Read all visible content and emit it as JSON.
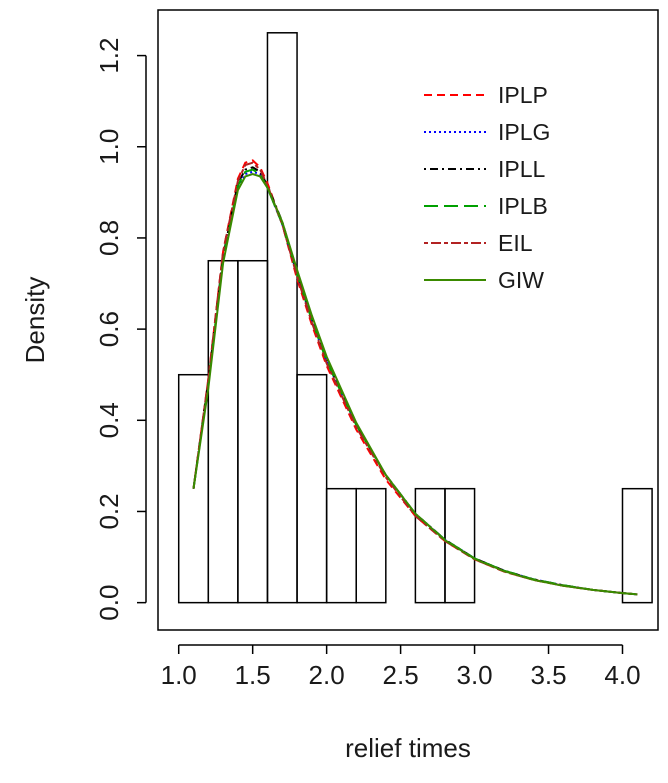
{
  "chart_data": {
    "type": "histogram_with_density_curves",
    "xlabel": "relief times",
    "ylabel": "Density",
    "xlim": [
      0.86,
      4.24
    ],
    "ylim": [
      -0.06,
      1.3
    ],
    "grid": false,
    "legend_position": "top-right",
    "x_ticks": [
      "1.0",
      "1.5",
      "2.0",
      "2.5",
      "3.0",
      "3.5",
      "4.0"
    ],
    "y_ticks": [
      "0.0",
      "0.2",
      "0.4",
      "0.6",
      "0.8",
      "1.0",
      "1.2"
    ],
    "histogram": {
      "bin_edges": [
        1.0,
        1.2,
        1.4,
        1.6,
        1.8,
        2.0,
        2.2,
        2.4,
        2.6,
        2.8,
        3.0,
        3.2,
        3.4,
        3.6,
        3.8,
        4.0,
        4.2
      ],
      "densities": [
        0.5,
        0.75,
        0.75,
        1.25,
        0.5,
        0.25,
        0.25,
        0.0,
        0.25,
        0.25,
        0.0,
        0.0,
        0.0,
        0.0,
        0.0,
        0.25
      ]
    },
    "series": [
      {
        "name": "IPLP",
        "color": "#ff0000",
        "dash": "dashed",
        "x": [
          1.1,
          1.2,
          1.3,
          1.4,
          1.45,
          1.5,
          1.55,
          1.6,
          1.7,
          1.8,
          1.9,
          2.0,
          2.2,
          2.4,
          2.6,
          2.8,
          3.0,
          3.2,
          3.4,
          3.6,
          3.8,
          4.0,
          4.1
        ],
        "y": [
          0.25,
          0.49,
          0.77,
          0.93,
          0.965,
          0.97,
          0.955,
          0.92,
          0.83,
          0.71,
          0.61,
          0.52,
          0.38,
          0.27,
          0.19,
          0.135,
          0.095,
          0.068,
          0.05,
          0.037,
          0.028,
          0.021,
          0.018
        ]
      },
      {
        "name": "IPLG",
        "color": "#0000ff",
        "dash": "dotted",
        "x": [
          1.1,
          1.2,
          1.3,
          1.4,
          1.45,
          1.5,
          1.55,
          1.6,
          1.7,
          1.8,
          1.9,
          2.0,
          2.2,
          2.4,
          2.6,
          2.8,
          3.0,
          3.2,
          3.4,
          3.6,
          3.8,
          4.0,
          4.1
        ],
        "y": [
          0.25,
          0.48,
          0.75,
          0.91,
          0.94,
          0.945,
          0.94,
          0.91,
          0.83,
          0.72,
          0.62,
          0.53,
          0.39,
          0.28,
          0.195,
          0.138,
          0.097,
          0.07,
          0.051,
          0.038,
          0.028,
          0.021,
          0.018
        ]
      },
      {
        "name": "IPLL",
        "color": "#000000",
        "dash": "dotdash",
        "x": [
          1.1,
          1.2,
          1.3,
          1.4,
          1.45,
          1.5,
          1.55,
          1.6,
          1.7,
          1.8,
          1.9,
          2.0,
          2.2,
          2.4,
          2.6,
          2.8,
          3.0,
          3.2,
          3.4,
          3.6,
          3.8,
          4.0,
          4.1
        ],
        "y": [
          0.25,
          0.485,
          0.76,
          0.92,
          0.95,
          0.955,
          0.945,
          0.915,
          0.835,
          0.725,
          0.625,
          0.535,
          0.39,
          0.28,
          0.195,
          0.138,
          0.097,
          0.07,
          0.051,
          0.038,
          0.028,
          0.021,
          0.018
        ]
      },
      {
        "name": "IPLB",
        "color": "#00a000",
        "dash": "longdash",
        "x": [
          1.1,
          1.2,
          1.3,
          1.4,
          1.45,
          1.5,
          1.55,
          1.6,
          1.7,
          1.8,
          1.9,
          2.0,
          2.2,
          2.4,
          2.6,
          2.8,
          3.0,
          3.2,
          3.4,
          3.6,
          3.8,
          4.0,
          4.1
        ],
        "y": [
          0.25,
          0.48,
          0.755,
          0.915,
          0.945,
          0.95,
          0.94,
          0.91,
          0.83,
          0.72,
          0.62,
          0.53,
          0.39,
          0.28,
          0.195,
          0.138,
          0.097,
          0.07,
          0.051,
          0.038,
          0.028,
          0.021,
          0.018
        ]
      },
      {
        "name": "EIL",
        "color": "#b22222",
        "dash": "twodash",
        "x": [
          1.1,
          1.2,
          1.3,
          1.4,
          1.45,
          1.5,
          1.55,
          1.6,
          1.7,
          1.8,
          1.9,
          2.0,
          2.2,
          2.4,
          2.6,
          2.8,
          3.0,
          3.2,
          3.4,
          3.6,
          3.8,
          4.0,
          4.1
        ],
        "y": [
          0.25,
          0.49,
          0.77,
          0.925,
          0.96,
          0.965,
          0.95,
          0.915,
          0.83,
          0.715,
          0.615,
          0.525,
          0.385,
          0.275,
          0.19,
          0.135,
          0.095,
          0.068,
          0.05,
          0.037,
          0.028,
          0.021,
          0.018
        ]
      },
      {
        "name": "GIW",
        "color": "#3a8a00",
        "dash": "solid",
        "x": [
          1.1,
          1.2,
          1.3,
          1.4,
          1.45,
          1.5,
          1.55,
          1.6,
          1.7,
          1.8,
          1.9,
          2.0,
          2.2,
          2.4,
          2.6,
          2.8,
          3.0,
          3.2,
          3.4,
          3.6,
          3.8,
          4.0,
          4.1
        ],
        "y": [
          0.25,
          0.47,
          0.745,
          0.905,
          0.935,
          0.94,
          0.935,
          0.91,
          0.835,
          0.73,
          0.63,
          0.54,
          0.395,
          0.28,
          0.195,
          0.137,
          0.096,
          0.069,
          0.05,
          0.037,
          0.028,
          0.021,
          0.018
        ]
      }
    ]
  }
}
